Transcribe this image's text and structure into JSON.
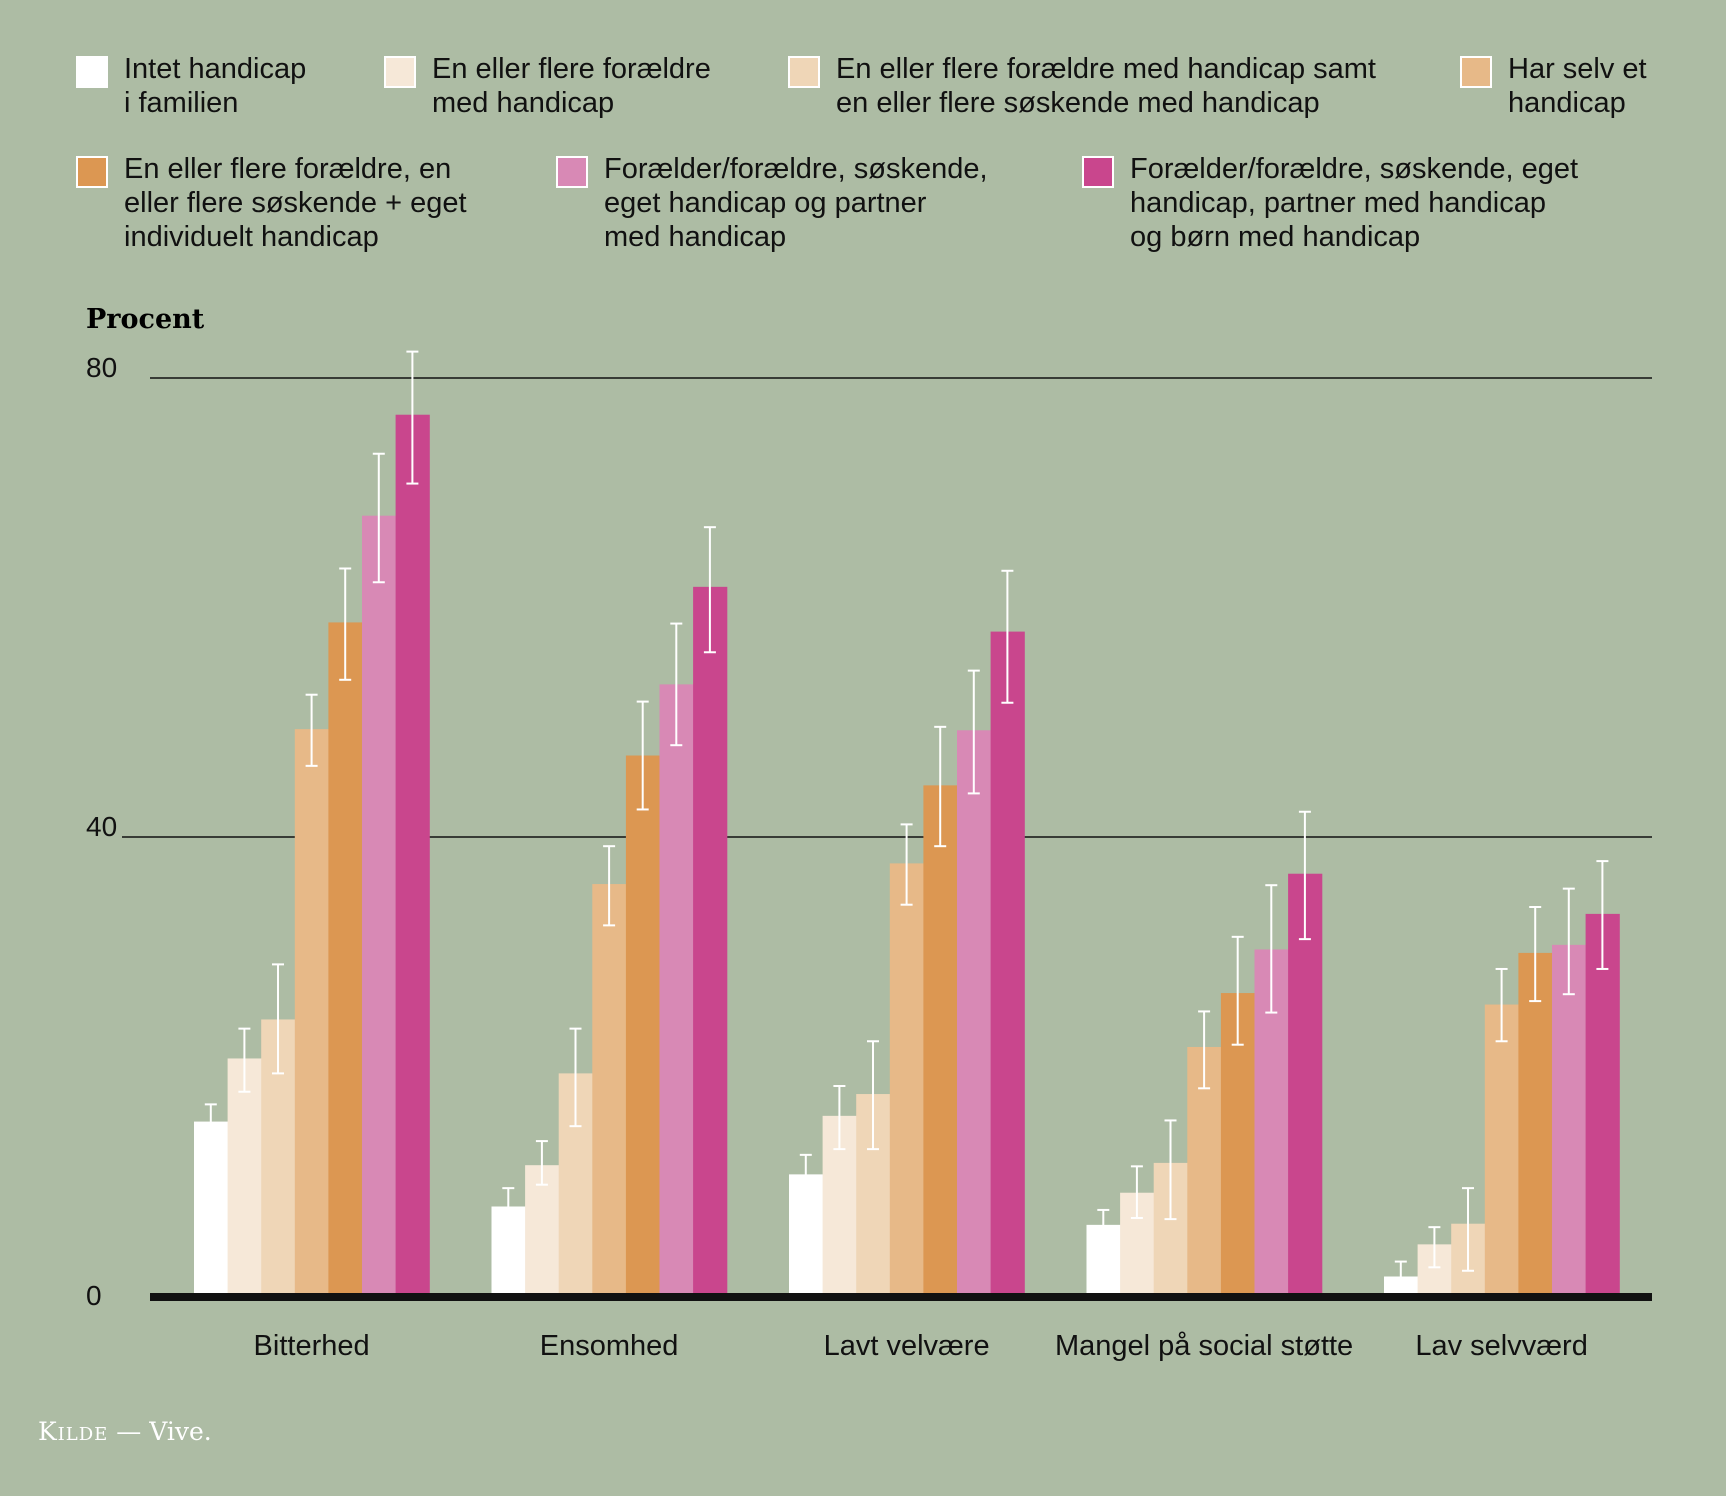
{
  "chart_data": {
    "type": "bar",
    "ylabel": "Procent",
    "ylim": [
      0,
      80
    ],
    "yticks": [
      0,
      40,
      80
    ],
    "grid": true,
    "legend_position": "top",
    "categories": [
      "Bitterhed",
      "Ensomhed",
      "Lavt velvære",
      "Mangel på social støtte",
      "Lav selvværd"
    ],
    "series": [
      {
        "name": "Intet handicap\ni familien",
        "color": "#ffffff",
        "values": [
          15.2,
          7.8,
          10.6,
          6.2,
          1.7
        ],
        "err_low": [
          14.8,
          7.2,
          10.0,
          5.8,
          1.5
        ],
        "err_high": [
          16.7,
          9.4,
          12.3,
          7.5,
          3.0
        ]
      },
      {
        "name": "En eller flere forældre\nmed handicap",
        "color": "#f6e8d8",
        "values": [
          20.7,
          11.4,
          15.7,
          9.0,
          4.5
        ],
        "err_low": [
          17.8,
          9.7,
          12.8,
          6.8,
          2.5
        ],
        "err_high": [
          23.3,
          13.5,
          18.3,
          11.3,
          6.0
        ]
      },
      {
        "name": "En eller flere forældre med handicap samt\nen eller flere søskende med handicap",
        "color": "#efd6b7",
        "values": [
          24.1,
          19.4,
          17.6,
          11.6,
          6.3
        ],
        "err_low": [
          19.4,
          14.8,
          12.8,
          6.7,
          2.2
        ],
        "err_high": [
          28.9,
          23.3,
          22.2,
          15.3,
          9.4
        ]
      },
      {
        "name": "Har selv et\nhandicap",
        "color": "#e7b988",
        "values": [
          49.4,
          35.9,
          37.7,
          21.7,
          25.4
        ],
        "err_low": [
          46.2,
          32.3,
          34.1,
          18.1,
          22.2
        ],
        "err_high": [
          52.4,
          39.2,
          41.1,
          24.8,
          28.5
        ]
      },
      {
        "name": "En eller flere forældre, en\neller flere søskende + eget\nindividuelt handicap",
        "color": "#dc9752",
        "values": [
          58.7,
          47.1,
          44.5,
          26.4,
          29.9
        ],
        "err_low": [
          53.7,
          42.4,
          39.2,
          21.9,
          25.7
        ],
        "err_high": [
          63.4,
          51.8,
          49.6,
          31.3,
          33.9
        ]
      },
      {
        "name": "Forælder/forældre, søskende,\neget handicap og partner\nmed handicap",
        "color": "#d889b5",
        "values": [
          68.0,
          53.3,
          49.3,
          30.2,
          30.6
        ],
        "err_low": [
          62.2,
          48.0,
          43.8,
          24.7,
          26.3
        ],
        "err_high": [
          73.4,
          58.6,
          54.5,
          35.8,
          35.5
        ]
      },
      {
        "name": "Forælder/forældre, søskende, eget\nhandicap, partner med handicap\nog børn med handicap",
        "color": "#c9468d",
        "values": [
          76.8,
          61.8,
          57.9,
          36.8,
          33.3
        ],
        "err_low": [
          70.8,
          56.1,
          51.7,
          31.1,
          28.5
        ],
        "err_high": [
          82.3,
          67.0,
          63.2,
          42.2,
          37.9
        ]
      }
    ]
  },
  "source": {
    "label": "Kilde",
    "dash": "—",
    "text": "Vive."
  }
}
